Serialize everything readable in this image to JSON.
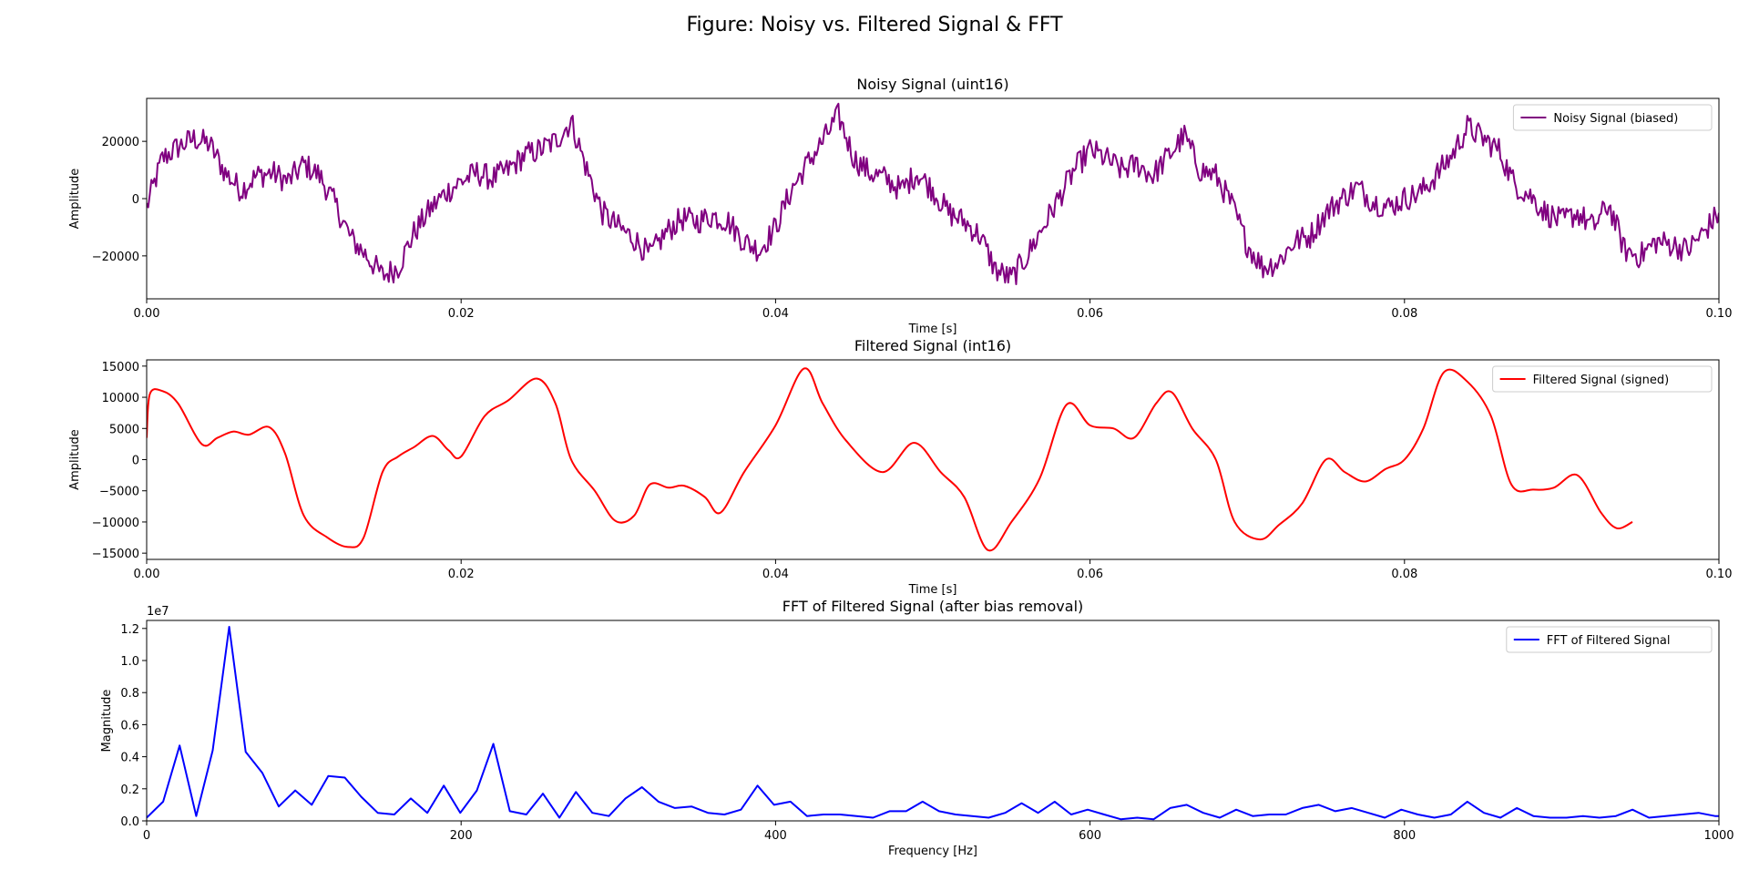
{
  "figure": {
    "title": "Figure: Noisy vs. Filtered Signal & FFT"
  },
  "chart_data": [
    {
      "type": "line",
      "title": "Noisy Signal (uint16)",
      "xlabel": "Time [s]",
      "ylabel": "Amplitude",
      "xlim": [
        0,
        0.1
      ],
      "ylim": [
        -35000,
        35000
      ],
      "xticks": [
        0,
        0.02,
        0.04,
        0.06,
        0.08,
        0.1
      ],
      "xtick_labels": [
        "0.00",
        "0.02",
        "0.04",
        "0.06",
        "0.08",
        "0.10"
      ],
      "yticks": [
        -20000,
        0,
        20000
      ],
      "ytick_labels": [
        "−20000",
        "0",
        "20000"
      ],
      "grid": false,
      "legend": "upper right",
      "noisy": true,
      "series": [
        {
          "name": "Noisy Signal (biased)",
          "color": "#800080",
          "x": [
            0,
            0.001,
            0.002,
            0.003,
            0.004,
            0.005,
            0.006,
            0.007,
            0.008,
            0.009,
            0.01,
            0.011,
            0.012,
            0.013,
            0.014,
            0.015,
            0.016,
            0.017,
            0.018,
            0.019,
            0.02,
            0.021,
            0.022,
            0.023,
            0.024,
            0.025,
            0.026,
            0.027,
            0.028,
            0.029,
            0.03,
            0.031,
            0.032,
            0.033,
            0.034,
            0.035,
            0.036,
            0.037,
            0.038,
            0.039,
            0.04,
            0.041,
            0.042,
            0.043,
            0.044,
            0.045,
            0.046,
            0.047,
            0.048,
            0.049,
            0.05,
            0.051,
            0.052,
            0.053,
            0.054,
            0.055,
            0.056,
            0.057,
            0.058,
            0.059,
            0.06,
            0.061,
            0.062,
            0.063,
            0.064,
            0.065,
            0.066,
            0.067,
            0.068,
            0.069,
            0.07,
            0.071,
            0.072,
            0.073,
            0.074,
            0.075,
            0.076,
            0.077,
            0.078,
            0.079,
            0.08,
            0.081,
            0.082,
            0.083,
            0.084,
            0.085,
            0.086,
            0.087,
            0.088,
            0.089,
            0.09,
            0.091,
            0.092,
            0.093,
            0.094,
            0.095,
            0.096,
            0.097,
            0.098,
            0.099,
            0.1
          ],
          "values": [
            -3000,
            14000,
            18000,
            21000,
            19000,
            9000,
            3000,
            8000,
            9000,
            6000,
            12000,
            8000,
            -2000,
            -14000,
            -20000,
            -27000,
            -24000,
            -12000,
            -4000,
            2000,
            6000,
            9000,
            7000,
            10000,
            15000,
            17000,
            20000,
            27000,
            10000,
            -5000,
            -10000,
            -14000,
            -20000,
            -12000,
            -7000,
            -8000,
            -6000,
            -8000,
            -15000,
            -18000,
            -10000,
            3000,
            12000,
            20000,
            29000,
            14000,
            9000,
            7000,
            3000,
            9000,
            3000,
            -5000,
            -8000,
            -13000,
            -25000,
            -28000,
            -20000,
            -10000,
            0,
            10000,
            17000,
            14000,
            10000,
            12000,
            8000,
            15000,
            22000,
            10000,
            8000,
            -2000,
            -16000,
            -24000,
            -22000,
            -15000,
            -13000,
            -5000,
            0,
            4000,
            -1000,
            -3000,
            0,
            2000,
            8000,
            15000,
            25000,
            21000,
            17000,
            5000,
            1000,
            -5000,
            -8000,
            -5000,
            -10000,
            -2000,
            -18000,
            -20000,
            -15000,
            -16000,
            -18000,
            -12000,
            -5000
          ]
        }
      ]
    },
    {
      "type": "line",
      "title": "Filtered Signal (int16)",
      "xlabel": "Time [s]",
      "ylabel": "Amplitude",
      "xlim": [
        0,
        0.1
      ],
      "ylim": [
        -16000,
        16000
      ],
      "xticks": [
        0,
        0.02,
        0.04,
        0.06,
        0.08,
        0.1
      ],
      "xtick_labels": [
        "0.00",
        "0.02",
        "0.04",
        "0.06",
        "0.08",
        "0.10"
      ],
      "yticks": [
        -15000,
        -10000,
        -5000,
        0,
        5000,
        10000,
        15000
      ],
      "ytick_labels": [
        "−15000",
        "−10000",
        "−5000",
        "0",
        "5000",
        "10000",
        "15000"
      ],
      "grid": false,
      "legend": "upper right",
      "noisy": false,
      "series": [
        {
          "name": "Filtered Signal (signed)",
          "color": "#ff0000",
          "x": [
            0,
            0.0002,
            0.001,
            0.002,
            0.0035,
            0.0045,
            0.0055,
            0.0065,
            0.0078,
            0.0088,
            0.01,
            0.0115,
            0.0128,
            0.0138,
            0.015,
            0.016,
            0.017,
            0.0182,
            0.0192,
            0.02,
            0.0215,
            0.023,
            0.0248,
            0.026,
            0.027,
            0.0285,
            0.0298,
            0.031,
            0.032,
            0.0332,
            0.0342,
            0.0355,
            0.0365,
            0.038,
            0.04,
            0.0418,
            0.043,
            0.0445,
            0.0468,
            0.0488,
            0.0505,
            0.052,
            0.0535,
            0.055,
            0.0568,
            0.0585,
            0.06,
            0.0615,
            0.0628,
            0.0642,
            0.0652,
            0.0665,
            0.068,
            0.0692,
            0.0708,
            0.072,
            0.0735,
            0.075,
            0.0762,
            0.0775,
            0.0788,
            0.08,
            0.0812,
            0.0825,
            0.084,
            0.0855,
            0.0868,
            0.0882,
            0.0895,
            0.091,
            0.0925,
            0.0935,
            0.0945
          ],
          "values": [
            3500,
            10500,
            11000,
            9000,
            2500,
            3500,
            4500,
            4000,
            5200,
            1000,
            -9000,
            -12500,
            -14000,
            -12500,
            -2000,
            500,
            2000,
            3800,
            1500,
            500,
            7000,
            9500,
            13000,
            9000,
            0,
            -5000,
            -9800,
            -9000,
            -4000,
            -4500,
            -4200,
            -6000,
            -8500,
            -2000,
            5500,
            14600,
            9000,
            3000,
            -2000,
            2700,
            -2000,
            -6000,
            -14500,
            -10000,
            -3000,
            8800,
            5500,
            5000,
            3500,
            9000,
            10800,
            5000,
            0,
            -10000,
            -12800,
            -10500,
            -7000,
            0,
            -2000,
            -3500,
            -1500,
            0,
            5000,
            14000,
            12500,
            7000,
            -4000,
            -4800,
            -4500,
            -2500,
            -8500,
            -11000,
            -10000
          ]
        }
      ]
    },
    {
      "type": "line",
      "title": "FFT of Filtered Signal (after bias removal)",
      "xlabel": "Frequency [Hz]",
      "ylabel": "Magnitude",
      "offset_label": "1e7",
      "xlim": [
        0,
        1000
      ],
      "ylim": [
        0,
        1.25
      ],
      "xticks": [
        0,
        200,
        400,
        600,
        800,
        1000
      ],
      "xtick_labels": [
        "0",
        "200",
        "400",
        "600",
        "800",
        "1000"
      ],
      "yticks": [
        0,
        0.2,
        0.4,
        0.6,
        0.8,
        1.0,
        1.2
      ],
      "ytick_labels": [
        "0.0",
        "0.2",
        "0.4",
        "0.6",
        "0.8",
        "1.0",
        "1.2"
      ],
      "grid": false,
      "legend": "upper right",
      "noisy": false,
      "series": [
        {
          "name": "FFT of Filtered Signal",
          "color": "#0000ff",
          "x": [
            0,
            10.5,
            21,
            31.5,
            42,
            52.5,
            63,
            73.5,
            84,
            94.5,
            105,
            115.5,
            126,
            136.5,
            147,
            157.5,
            168,
            178.5,
            189,
            199.5,
            210,
            220.5,
            231,
            241.5,
            252,
            262.5,
            273,
            283.5,
            294,
            304.5,
            315,
            325.5,
            336,
            346.5,
            357,
            367.5,
            378,
            388.5,
            399,
            409.5,
            420,
            430.5,
            441,
            451.5,
            462,
            472.5,
            483,
            493.5,
            504,
            514.5,
            525,
            535.5,
            546,
            556.5,
            567,
            577.5,
            588,
            598.5,
            609,
            619.5,
            630,
            640.5,
            651,
            661.5,
            672,
            682.5,
            693,
            703.5,
            714,
            724.5,
            735,
            745.5,
            756,
            766.5,
            777,
            787.5,
            798,
            808.5,
            819,
            829.5,
            840,
            850.5,
            861,
            871.5,
            882,
            892.5,
            903,
            913.5,
            924,
            934.5,
            945,
            955.5,
            966,
            976.5,
            987,
            997.5,
            1000
          ],
          "values": [
            0.02,
            0.12,
            0.47,
            0.03,
            0.44,
            1.21,
            0.43,
            0.3,
            0.09,
            0.19,
            0.1,
            0.28,
            0.27,
            0.15,
            0.05,
            0.04,
            0.14,
            0.05,
            0.22,
            0.05,
            0.19,
            0.48,
            0.06,
            0.04,
            0.17,
            0.02,
            0.18,
            0.05,
            0.03,
            0.14,
            0.21,
            0.12,
            0.08,
            0.09,
            0.05,
            0.04,
            0.07,
            0.22,
            0.1,
            0.12,
            0.03,
            0.04,
            0.04,
            0.03,
            0.02,
            0.06,
            0.06,
            0.12,
            0.06,
            0.04,
            0.03,
            0.02,
            0.05,
            0.11,
            0.05,
            0.12,
            0.04,
            0.07,
            0.04,
            0.01,
            0.02,
            0.01,
            0.08,
            0.1,
            0.05,
            0.02,
            0.07,
            0.03,
            0.04,
            0.04,
            0.08,
            0.1,
            0.06,
            0.08,
            0.05,
            0.02,
            0.07,
            0.04,
            0.02,
            0.04,
            0.12,
            0.05,
            0.02,
            0.08,
            0.03,
            0.02,
            0.02,
            0.03,
            0.02,
            0.03,
            0.07,
            0.02,
            0.03,
            0.04,
            0.05,
            0.03,
            0.03
          ]
        }
      ]
    }
  ]
}
